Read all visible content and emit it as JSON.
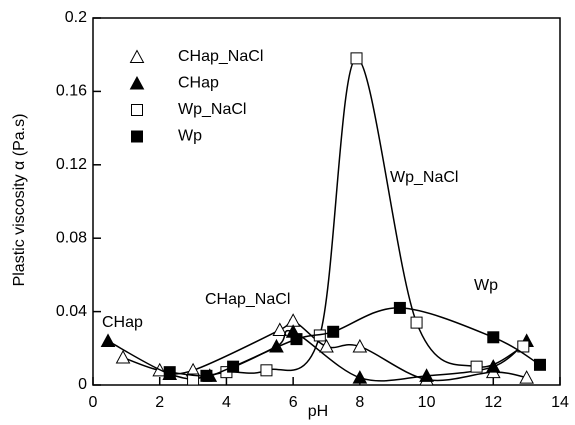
{
  "chart_data": {
    "type": "line",
    "x_label": "pH",
    "y_label": "Plastic viscosity α (Pa.s)",
    "xlim": [
      0,
      14
    ],
    "xticks": [
      0,
      2,
      4,
      6,
      8,
      10,
      12,
      14
    ],
    "ylim": [
      0,
      0.2
    ],
    "yticks": [
      0,
      0.04,
      0.08,
      0.12,
      0.16,
      0.2
    ],
    "legend": "upper left",
    "series": [
      {
        "name": "CHap_NaCl",
        "color": "#000000",
        "marker": "triangle-open",
        "x": [
          0.9,
          2,
          3,
          5.6,
          6,
          7,
          8,
          10,
          12,
          13
        ],
        "values": [
          0.015,
          0.008,
          0.008,
          0.03,
          0.035,
          0.021,
          0.021,
          0.003,
          0.007,
          0.004
        ]
      },
      {
        "name": "CHap",
        "color": "#000000",
        "marker": "triangle-filled",
        "x": [
          0.45,
          2.3,
          3.5,
          5.5,
          6,
          8,
          10,
          12,
          13
        ],
        "values": [
          0.024,
          0.006,
          0.005,
          0.021,
          0.029,
          0.004,
          0.005,
          0.01,
          0.024
        ]
      },
      {
        "name": "Wp_NaCl",
        "color": "#000000",
        "marker": "square-open",
        "x": [
          3,
          4,
          5.2,
          6.8,
          7.9,
          9.7,
          11.5,
          12.9
        ],
        "values": [
          0.003,
          0.007,
          0.008,
          0.027,
          0.178,
          0.034,
          0.01,
          0.021
        ]
      },
      {
        "name": "Wp",
        "color": "#000000",
        "marker": "square-filled",
        "x": [
          2.3,
          3.4,
          4.2,
          6.1,
          7.2,
          9.2,
          12,
          13.4
        ],
        "values": [
          0.007,
          0.005,
          0.01,
          0.025,
          0.029,
          0.042,
          0.026,
          0.011
        ]
      }
    ],
    "annotations": [
      "CHap",
      "CHap_NaCl",
      "Wp_NaCl",
      "Wp"
    ]
  }
}
